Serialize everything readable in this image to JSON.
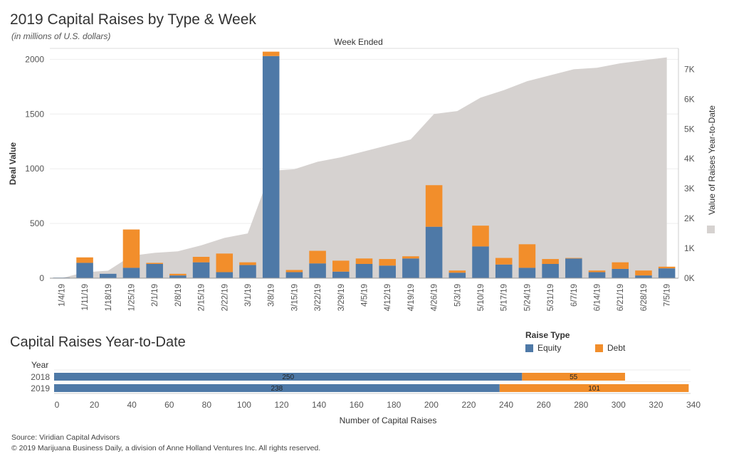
{
  "header": {
    "title": "2019 Capital Raises by Type & Week",
    "subtitle": "(in millions of U.S. dollars)"
  },
  "section2": {
    "title": "Capital Raises Year-to-Date"
  },
  "legend": {
    "title": "Raise Type",
    "items": [
      "Equity",
      "Debt"
    ]
  },
  "footer": {
    "source": "Source: Viridian Capital Advisors",
    "copyright": "© 2019 Marijuana Business Daily, a division of Anne Holland Ventures Inc. All rights reserved."
  },
  "colors": {
    "equity": "#4e79a7",
    "debt": "#f28e2b",
    "area": "#d6d2d0"
  },
  "chart_data": [
    {
      "type": "bar",
      "stacked": true,
      "top_label": "Week Ended",
      "ylabel": "Deal Value",
      "y2label": "Value of Raises Year-to-Date",
      "ylim": [
        0,
        2100
      ],
      "y2lim": [
        0,
        7700
      ],
      "yticks": [
        "0",
        "500",
        "1000",
        "1500",
        "2000"
      ],
      "y2ticks": [
        "0K",
        "1K",
        "2K",
        "3K",
        "4K",
        "5K",
        "6K",
        "7K"
      ],
      "categories": [
        "1/4/19",
        "1/11/19",
        "1/18/19",
        "1/25/19",
        "2/1/19",
        "2/8/19",
        "2/15/19",
        "2/22/19",
        "3/1/19",
        "3/8/19",
        "3/15/19",
        "3/22/19",
        "3/29/19",
        "4/5/19",
        "4/12/19",
        "4/19/19",
        "4/26/19",
        "5/3/19",
        "5/10/19",
        "5/17/19",
        "5/24/19",
        "5/31/19",
        "6/7/19",
        "6/14/19",
        "6/21/19",
        "6/28/19",
        "7/5/19"
      ],
      "series": [
        {
          "name": "Equity",
          "values": [
            5,
            140,
            40,
            95,
            130,
            25,
            145,
            55,
            120,
            2030,
            55,
            135,
            60,
            130,
            115,
            180,
            470,
            50,
            290,
            125,
            95,
            130,
            180,
            55,
            85,
            25,
            90
          ]
        },
        {
          "name": "Debt",
          "values": [
            0,
            50,
            0,
            350,
            10,
            15,
            50,
            170,
            25,
            40,
            20,
            115,
            100,
            50,
            60,
            20,
            380,
            20,
            190,
            60,
            215,
            45,
            5,
            15,
            60,
            45,
            15
          ]
        },
        {
          "name": "Value of Raises Year-to-Date",
          "type": "area",
          "values": [
            0,
            200,
            250,
            750,
            850,
            900,
            1100,
            1350,
            1500,
            3600,
            3650,
            3900,
            4050,
            4250,
            4450,
            4650,
            5500,
            5600,
            6050,
            6300,
            6600,
            6800,
            7000,
            7050,
            7200,
            7300,
            7400
          ]
        }
      ]
    },
    {
      "type": "bar",
      "stacked": true,
      "orientation": "horizontal",
      "xlabel": "Number of Capital Raises",
      "ylabel": "Year",
      "categories": [
        "2018",
        "2019"
      ],
      "xlim": [
        0,
        340
      ],
      "xticks": [
        "0",
        "20",
        "40",
        "60",
        "80",
        "100",
        "120",
        "140",
        "160",
        "180",
        "200",
        "220",
        "240",
        "260",
        "280",
        "300",
        "320",
        "340"
      ],
      "series": [
        {
          "name": "Equity",
          "values": [
            250,
            238
          ]
        },
        {
          "name": "Debt",
          "values": [
            55,
            101
          ]
        }
      ]
    }
  ]
}
